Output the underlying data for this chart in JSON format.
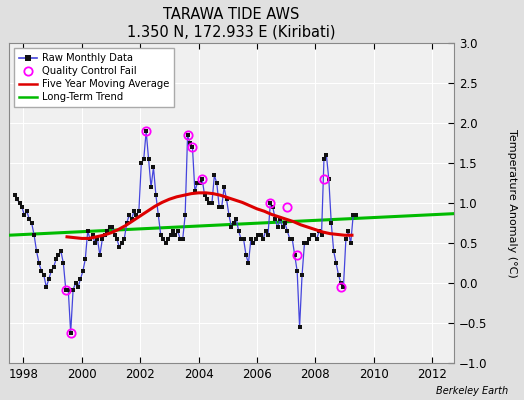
{
  "title": "TARAWA TIDE AWS",
  "subtitle": "1.350 N, 172.933 E (Kiribati)",
  "ylabel": "Temperature Anomaly (°C)",
  "credit": "Berkeley Earth",
  "xlim": [
    1997.5,
    2012.75
  ],
  "ylim": [
    -1.0,
    3.0
  ],
  "yticks": [
    -1,
    -0.5,
    0,
    0.5,
    1,
    1.5,
    2,
    2.5,
    3
  ],
  "xticks": [
    1998,
    2000,
    2002,
    2004,
    2006,
    2008,
    2010,
    2012
  ],
  "plot_bg_color": "#f0f0f0",
  "fig_bg_color": "#e0e0e0",
  "raw_color": "#4444dd",
  "raw_marker_color": "#111111",
  "moving_avg_color": "#dd0000",
  "trend_color": "#00bb00",
  "qc_color": "#ff00ff",
  "raw_data": [
    [
      1997.708,
      1.1
    ],
    [
      1997.792,
      1.05
    ],
    [
      1997.875,
      1.0
    ],
    [
      1997.958,
      0.95
    ],
    [
      1998.042,
      0.85
    ],
    [
      1998.125,
      0.9
    ],
    [
      1998.208,
      0.8
    ],
    [
      1998.292,
      0.75
    ],
    [
      1998.375,
      0.6
    ],
    [
      1998.458,
      0.4
    ],
    [
      1998.542,
      0.25
    ],
    [
      1998.625,
      0.15
    ],
    [
      1998.708,
      0.1
    ],
    [
      1998.792,
      -0.05
    ],
    [
      1998.875,
      0.05
    ],
    [
      1998.958,
      0.15
    ],
    [
      1999.042,
      0.2
    ],
    [
      1999.125,
      0.3
    ],
    [
      1999.208,
      0.35
    ],
    [
      1999.292,
      0.4
    ],
    [
      1999.375,
      0.25
    ],
    [
      1999.458,
      -0.08
    ],
    [
      1999.542,
      -0.08
    ],
    [
      1999.625,
      -0.62
    ],
    [
      1999.708,
      -0.08
    ],
    [
      1999.792,
      0.0
    ],
    [
      1999.875,
      -0.05
    ],
    [
      1999.958,
      0.05
    ],
    [
      2000.042,
      0.15
    ],
    [
      2000.125,
      0.3
    ],
    [
      2000.208,
      0.65
    ],
    [
      2000.292,
      0.55
    ],
    [
      2000.375,
      0.6
    ],
    [
      2000.458,
      0.5
    ],
    [
      2000.542,
      0.55
    ],
    [
      2000.625,
      0.35
    ],
    [
      2000.708,
      0.55
    ],
    [
      2000.792,
      0.6
    ],
    [
      2000.875,
      0.65
    ],
    [
      2000.958,
      0.7
    ],
    [
      2001.042,
      0.7
    ],
    [
      2001.125,
      0.6
    ],
    [
      2001.208,
      0.55
    ],
    [
      2001.292,
      0.45
    ],
    [
      2001.375,
      0.5
    ],
    [
      2001.458,
      0.55
    ],
    [
      2001.542,
      0.75
    ],
    [
      2001.625,
      0.85
    ],
    [
      2001.708,
      0.8
    ],
    [
      2001.792,
      0.9
    ],
    [
      2001.875,
      0.85
    ],
    [
      2001.958,
      0.9
    ],
    [
      2002.042,
      1.5
    ],
    [
      2002.125,
      1.55
    ],
    [
      2002.208,
      1.9
    ],
    [
      2002.292,
      1.55
    ],
    [
      2002.375,
      1.2
    ],
    [
      2002.458,
      1.45
    ],
    [
      2002.542,
      1.1
    ],
    [
      2002.625,
      0.85
    ],
    [
      2002.708,
      0.6
    ],
    [
      2002.792,
      0.55
    ],
    [
      2002.875,
      0.5
    ],
    [
      2002.958,
      0.55
    ],
    [
      2003.042,
      0.6
    ],
    [
      2003.125,
      0.65
    ],
    [
      2003.208,
      0.6
    ],
    [
      2003.292,
      0.65
    ],
    [
      2003.375,
      0.55
    ],
    [
      2003.458,
      0.55
    ],
    [
      2003.542,
      0.85
    ],
    [
      2003.625,
      1.85
    ],
    [
      2003.708,
      1.75
    ],
    [
      2003.792,
      1.7
    ],
    [
      2003.875,
      1.15
    ],
    [
      2003.958,
      1.25
    ],
    [
      2004.042,
      1.25
    ],
    [
      2004.125,
      1.3
    ],
    [
      2004.208,
      1.1
    ],
    [
      2004.292,
      1.05
    ],
    [
      2004.375,
      1.0
    ],
    [
      2004.458,
      1.0
    ],
    [
      2004.542,
      1.35
    ],
    [
      2004.625,
      1.25
    ],
    [
      2004.708,
      0.95
    ],
    [
      2004.792,
      0.95
    ],
    [
      2004.875,
      1.2
    ],
    [
      2004.958,
      1.05
    ],
    [
      2005.042,
      0.85
    ],
    [
      2005.125,
      0.7
    ],
    [
      2005.208,
      0.75
    ],
    [
      2005.292,
      0.8
    ],
    [
      2005.375,
      0.65
    ],
    [
      2005.458,
      0.55
    ],
    [
      2005.542,
      0.55
    ],
    [
      2005.625,
      0.35
    ],
    [
      2005.708,
      0.25
    ],
    [
      2005.792,
      0.55
    ],
    [
      2005.875,
      0.5
    ],
    [
      2005.958,
      0.55
    ],
    [
      2006.042,
      0.6
    ],
    [
      2006.125,
      0.6
    ],
    [
      2006.208,
      0.55
    ],
    [
      2006.292,
      0.65
    ],
    [
      2006.375,
      0.6
    ],
    [
      2006.458,
      1.0
    ],
    [
      2006.542,
      0.95
    ],
    [
      2006.625,
      0.8
    ],
    [
      2006.708,
      0.7
    ],
    [
      2006.792,
      0.8
    ],
    [
      2006.875,
      0.7
    ],
    [
      2006.958,
      0.75
    ],
    [
      2007.042,
      0.65
    ],
    [
      2007.125,
      0.55
    ],
    [
      2007.208,
      0.55
    ],
    [
      2007.292,
      0.35
    ],
    [
      2007.375,
      0.15
    ],
    [
      2007.458,
      -0.55
    ],
    [
      2007.542,
      0.1
    ],
    [
      2007.625,
      0.5
    ],
    [
      2007.708,
      0.5
    ],
    [
      2007.792,
      0.55
    ],
    [
      2007.875,
      0.6
    ],
    [
      2007.958,
      0.6
    ],
    [
      2008.042,
      0.55
    ],
    [
      2008.125,
      0.65
    ],
    [
      2008.208,
      0.6
    ],
    [
      2008.292,
      1.55
    ],
    [
      2008.375,
      1.6
    ],
    [
      2008.458,
      1.3
    ],
    [
      2008.542,
      0.75
    ],
    [
      2008.625,
      0.4
    ],
    [
      2008.708,
      0.25
    ],
    [
      2008.792,
      0.1
    ],
    [
      2008.875,
      0.0
    ],
    [
      2008.958,
      -0.05
    ],
    [
      2009.042,
      0.55
    ],
    [
      2009.125,
      0.65
    ],
    [
      2009.208,
      0.5
    ],
    [
      2009.292,
      0.85
    ],
    [
      2009.375,
      0.85
    ]
  ],
  "qc_fail_points": [
    [
      1999.458,
      -0.08
    ],
    [
      1999.625,
      -0.62
    ],
    [
      2002.208,
      1.9
    ],
    [
      2003.625,
      1.85
    ],
    [
      2003.792,
      1.7
    ],
    [
      2004.125,
      1.3
    ],
    [
      2006.458,
      1.0
    ],
    [
      2007.042,
      0.95
    ],
    [
      2007.375,
      0.35
    ],
    [
      2008.292,
      1.3
    ],
    [
      2008.875,
      -0.05
    ]
  ],
  "moving_avg": [
    [
      1999.5,
      0.58
    ],
    [
      1999.75,
      0.57
    ],
    [
      2000.0,
      0.56
    ],
    [
      2000.25,
      0.56
    ],
    [
      2000.5,
      0.58
    ],
    [
      2000.75,
      0.6
    ],
    [
      2001.0,
      0.63
    ],
    [
      2001.25,
      0.67
    ],
    [
      2001.5,
      0.72
    ],
    [
      2001.75,
      0.78
    ],
    [
      2002.0,
      0.84
    ],
    [
      2002.25,
      0.9
    ],
    [
      2002.5,
      0.96
    ],
    [
      2002.75,
      1.01
    ],
    [
      2003.0,
      1.05
    ],
    [
      2003.25,
      1.08
    ],
    [
      2003.5,
      1.1
    ],
    [
      2003.75,
      1.12
    ],
    [
      2004.0,
      1.13
    ],
    [
      2004.25,
      1.13
    ],
    [
      2004.5,
      1.12
    ],
    [
      2004.75,
      1.1
    ],
    [
      2005.0,
      1.07
    ],
    [
      2005.25,
      1.04
    ],
    [
      2005.5,
      1.01
    ],
    [
      2005.75,
      0.97
    ],
    [
      2006.0,
      0.93
    ],
    [
      2006.25,
      0.9
    ],
    [
      2006.5,
      0.86
    ],
    [
      2006.75,
      0.83
    ],
    [
      2007.0,
      0.8
    ],
    [
      2007.25,
      0.77
    ],
    [
      2007.5,
      0.73
    ],
    [
      2007.75,
      0.7
    ],
    [
      2008.0,
      0.67
    ],
    [
      2008.25,
      0.64
    ],
    [
      2008.5,
      0.62
    ],
    [
      2008.75,
      0.61
    ],
    [
      2009.0,
      0.6
    ],
    [
      2009.25,
      0.6
    ]
  ],
  "trend_x": [
    1997.5,
    2012.75
  ],
  "trend_y": [
    0.6,
    0.87
  ]
}
